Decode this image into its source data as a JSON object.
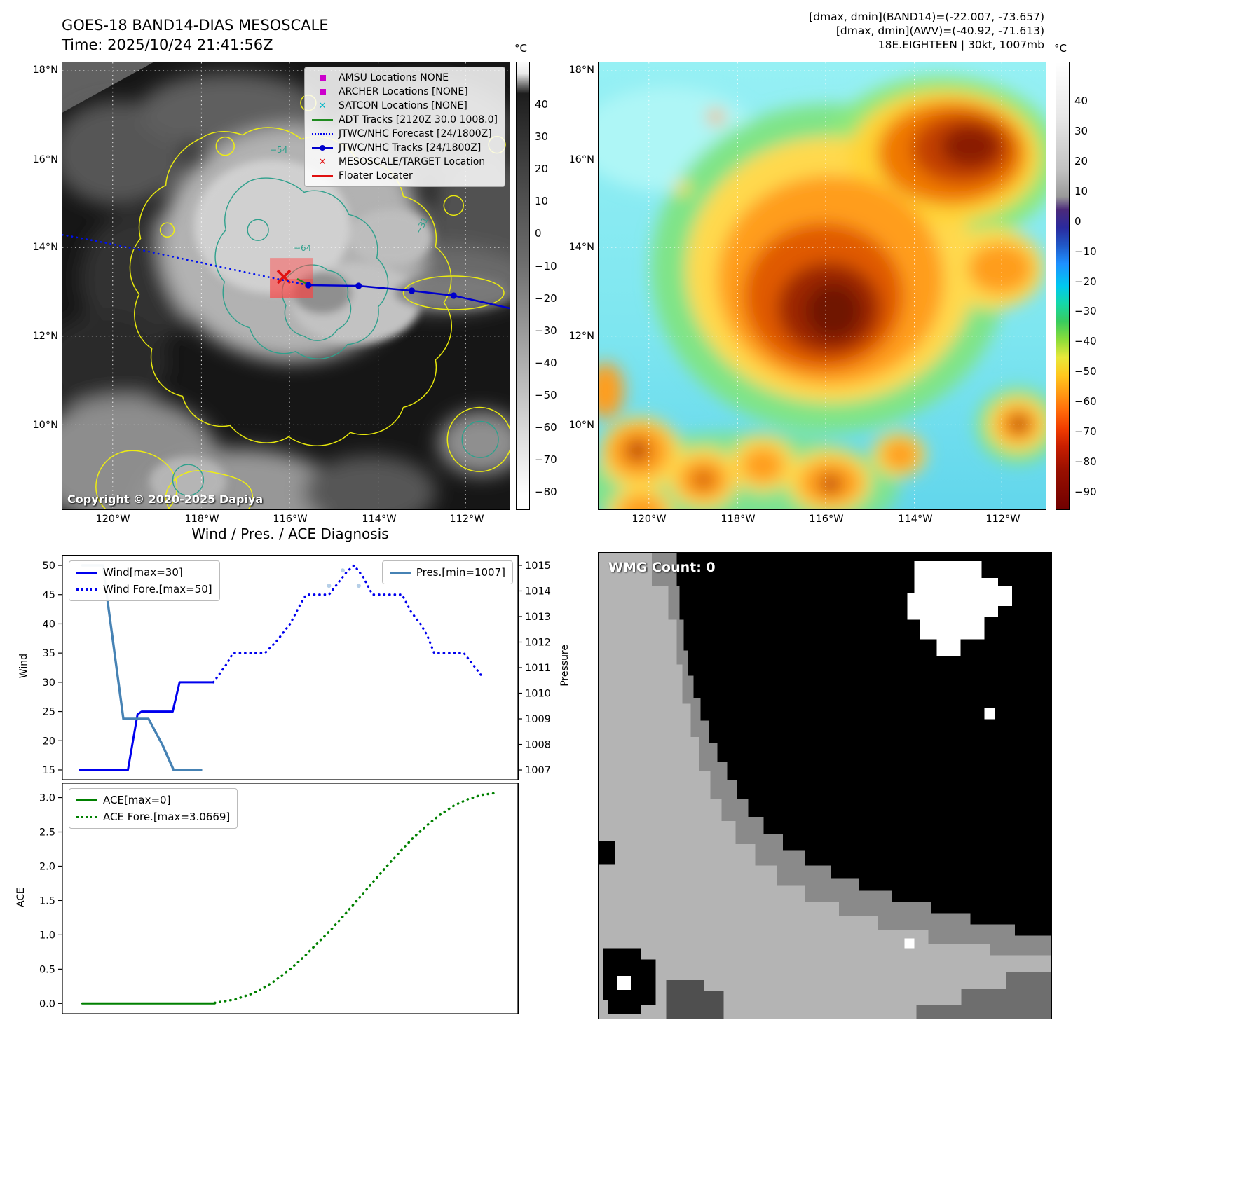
{
  "panel_tl": {
    "title_line1": "GOES-18 BAND14-DIAS MESOSCALE",
    "title_line2": "Time: 2025/10/24 21:41:56Z",
    "copyright": "Copyright © 2020-2025 Dapiya",
    "lat_ticks": [
      "18°N",
      "16°N",
      "14°N",
      "12°N",
      "10°N"
    ],
    "lon_ticks": [
      "120°W",
      "118°W",
      "116°W",
      "114°W",
      "112°W"
    ],
    "colorbar": {
      "label": "°C",
      "ticks": [
        "40",
        "30",
        "20",
        "10",
        "0",
        "−10",
        "−20",
        "−30",
        "−40",
        "−50",
        "−60",
        "−70",
        "−80"
      ]
    },
    "contour_labels": [
      "−54",
      "−64",
      "−31"
    ],
    "legend": [
      {
        "label": "AMSU Locations NONE",
        "marker": "square",
        "color": "#cc00cc"
      },
      {
        "label": "ARCHER Locations [NONE]",
        "marker": "square",
        "color": "#cc00cc"
      },
      {
        "label": "SATCON Locations [NONE]",
        "marker": "x",
        "color": "#00b8c8"
      },
      {
        "label": "ADT Tracks [2120Z 30.0 1008.0]",
        "marker": "line",
        "color": "#1f8a1f"
      },
      {
        "label": "JTWC/NHC Forecast [24/1800Z]",
        "marker": "dotted-line",
        "color": "#0000ee"
      },
      {
        "label": "JTWC/NHC Tracks [24/1800Z]",
        "marker": "line-marker",
        "color": "#0000cc"
      },
      {
        "label": "MESOSCALE/TARGET Location",
        "marker": "x",
        "color": "#e01010"
      },
      {
        "label": "Floater Locater",
        "marker": "line",
        "color": "#e01010"
      }
    ]
  },
  "panel_tr": {
    "header_line1": "[dmax, dmin](BAND14)=(-22.007, -73.657)",
    "header_line2": "[dmax, dmin](AWV)=(-40.92, -71.613)",
    "header_line3": "18E.EIGHTEEN | 30kt, 1007mb",
    "lat_ticks": [
      "18°N",
      "16°N",
      "14°N",
      "12°N",
      "10°N"
    ],
    "lon_ticks": [
      "120°W",
      "118°W",
      "116°W",
      "114°W",
      "112°W"
    ],
    "colorbar": {
      "label": "°C",
      "ticks": [
        "40",
        "30",
        "20",
        "10",
        "0",
        "−10",
        "−20",
        "−30",
        "−40",
        "−50",
        "−60",
        "−70",
        "−80",
        "−90"
      ]
    }
  },
  "section_title": "Wind / Pres. / ACE Diagnosis",
  "panel_wmg": {
    "count_label": "WMG Count: 0"
  },
  "chart_data": [
    {
      "id": "wind-pres",
      "type": "line",
      "title": "Wind / Pres. / ACE Diagnosis",
      "ylabel_left": "Wind",
      "ylabel_right": "Pressure",
      "ylim_left": [
        13.2,
        51.8
      ],
      "ylim_right": [
        1006.59,
        1015.41
      ],
      "yticks_left": [
        15,
        20,
        25,
        30,
        35,
        40,
        45,
        50
      ],
      "yticks_right": [
        1007,
        1008,
        1009,
        1010,
        1011,
        1012,
        1013,
        1014,
        1015
      ],
      "series": [
        {
          "name": "Wind[max=30]",
          "axis": "left",
          "style": "solid",
          "color": "#0000ee",
          "width": 3,
          "points": [
            [
              0.04,
              15
            ],
            [
              0.145,
              15
            ],
            [
              0.166,
              24.5
            ],
            [
              0.175,
              25
            ],
            [
              0.243,
              25
            ],
            [
              0.258,
              30
            ],
            [
              0.332,
              30
            ]
          ]
        },
        {
          "name": "Wind Fore.[max=50]",
          "axis": "left",
          "style": "dotted",
          "color": "#0000ee",
          "width": 3.2,
          "points": [
            [
              0.332,
              30
            ],
            [
              0.36,
              33
            ],
            [
              0.375,
              35
            ],
            [
              0.445,
              35
            ],
            [
              0.47,
              37
            ],
            [
              0.5,
              40
            ],
            [
              0.52,
              43
            ],
            [
              0.535,
              45
            ],
            [
              0.585,
              45
            ],
            [
              0.6,
              46.5
            ],
            [
              0.625,
              49
            ],
            [
              0.64,
              50
            ],
            [
              0.66,
              48
            ],
            [
              0.68,
              45
            ],
            [
              0.745,
              45
            ],
            [
              0.765,
              42
            ],
            [
              0.785,
              40
            ],
            [
              0.8,
              38
            ],
            [
              0.815,
              35
            ],
            [
              0.88,
              35
            ],
            [
              0.9,
              33
            ],
            [
              0.92,
              31
            ]
          ]
        },
        {
          "name": "Pres.[min=1007]",
          "axis": "right",
          "style": "solid",
          "color": "#4682b4",
          "width": 3.4,
          "points": [
            [
              0.045,
              1015
            ],
            [
              0.09,
              1015
            ],
            [
              0.135,
              1009
            ],
            [
              0.19,
              1009
            ],
            [
              0.22,
              1008
            ],
            [
              0.245,
              1007
            ],
            [
              0.305,
              1007
            ]
          ]
        },
        {
          "name": "pres-forecast-dots",
          "axis": "right",
          "style": "dots",
          "color": "#a9c7e3",
          "width": 3,
          "points": [
            [
              0.585,
              1014.2
            ],
            [
              0.615,
              1014.8
            ],
            [
              0.65,
              1014.2
            ]
          ]
        }
      ]
    },
    {
      "id": "ace",
      "type": "line",
      "ylabel_left": "ACE",
      "ylim_left": [
        -0.16,
        3.22
      ],
      "yticks_left": [
        0,
        0.5,
        1,
        1.5,
        2,
        2.5,
        3
      ],
      "ytick_labels_left": [
        "0.0",
        "0.5",
        "1.0",
        "1.5",
        "2.0",
        "2.5",
        "3.0"
      ],
      "series": [
        {
          "name": "ACE[max=0]",
          "axis": "left",
          "style": "solid",
          "color": "#008000",
          "width": 3,
          "points": [
            [
              0.045,
              0
            ],
            [
              0.335,
              0
            ]
          ]
        },
        {
          "name": "ACE Fore.[max=3.0669]",
          "axis": "left",
          "style": "dotted",
          "color": "#008000",
          "width": 3.4,
          "points": [
            [
              0.335,
              0.01
            ],
            [
              0.38,
              0.06
            ],
            [
              0.42,
              0.15
            ],
            [
              0.46,
              0.3
            ],
            [
              0.5,
              0.5
            ],
            [
              0.53,
              0.68
            ],
            [
              0.56,
              0.88
            ],
            [
              0.59,
              1.08
            ],
            [
              0.62,
              1.3
            ],
            [
              0.65,
              1.53
            ],
            [
              0.68,
              1.76
            ],
            [
              0.71,
              1.99
            ],
            [
              0.74,
              2.21
            ],
            [
              0.77,
              2.42
            ],
            [
              0.8,
              2.6
            ],
            [
              0.83,
              2.76
            ],
            [
              0.86,
              2.89
            ],
            [
              0.89,
              2.98
            ],
            [
              0.92,
              3.04
            ],
            [
              0.95,
              3.0669
            ]
          ]
        }
      ]
    }
  ]
}
